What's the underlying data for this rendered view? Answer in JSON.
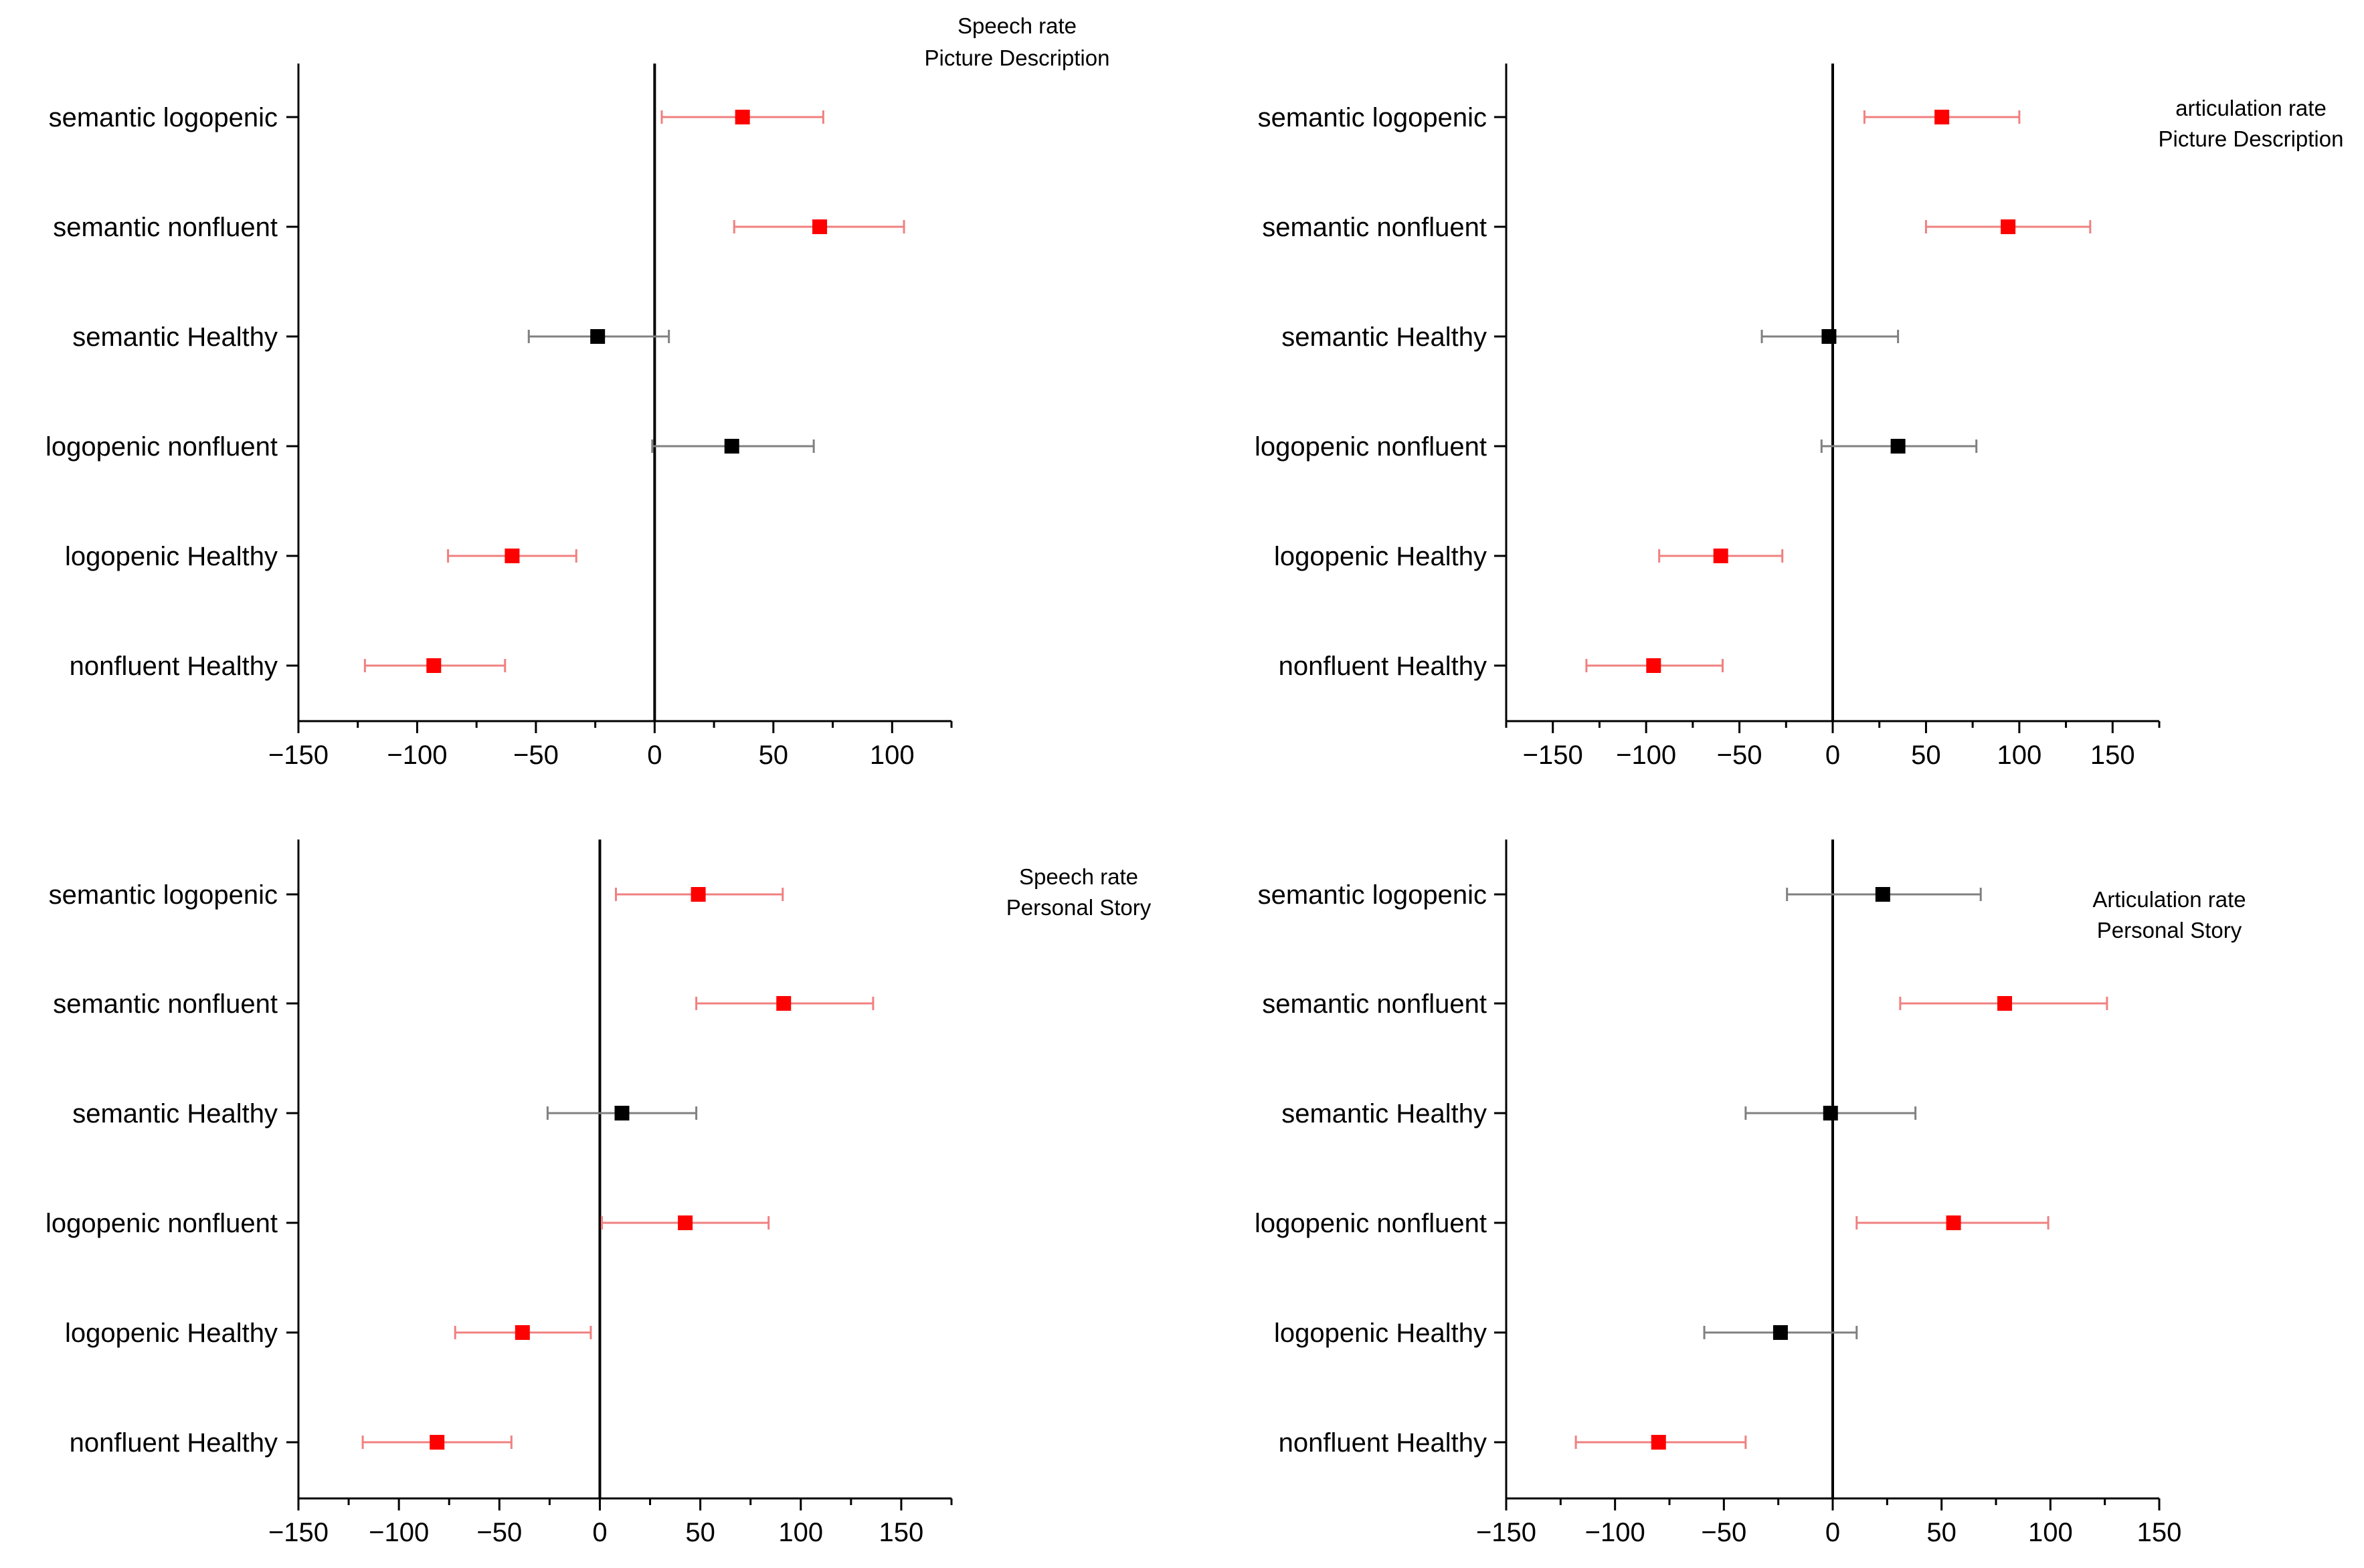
{
  "chart_data": [
    {
      "type": "scatter",
      "title_lines": [
        "Speech rate",
        "Picture Description"
      ],
      "title_anchor": "middle",
      "xlim": [
        -150,
        125
      ],
      "xticks": [
        -150,
        -100,
        -50,
        0,
        50,
        100
      ],
      "tick_labels": [
        "−150",
        "−100",
        "−50",
        "0",
        "50",
        "100"
      ],
      "categories": [
        "semantic  logopenic",
        "semantic  nonfluent",
        "semantic  Healthy",
        "logopenic  nonfluent",
        "logopenic  Healthy",
        "nonfluent  Healthy"
      ],
      "estimates": [
        37,
        69.5,
        -24,
        32.5,
        -60,
        -93
      ],
      "lower": [
        3,
        33.5,
        -53,
        -1,
        -87,
        -122
      ],
      "upper": [
        71,
        105,
        6,
        67,
        -33,
        -63
      ],
      "significant": [
        true,
        true,
        false,
        false,
        true,
        true
      ]
    },
    {
      "type": "scatter",
      "title_lines": [
        "articulation rate",
        "Picture Description"
      ],
      "title_anchor": "middle",
      "xlim": [
        -175,
        175
      ],
      "xticks": [
        -150,
        -100,
        -50,
        0,
        50,
        100,
        150
      ],
      "tick_labels": [
        "−150",
        "−100",
        "−50",
        "0",
        "50",
        "100",
        "150"
      ],
      "categories": [
        "semantic  logopenic",
        "semantic  nonfluent",
        "semantic  Healthy",
        "logopenic  nonfluent",
        "logopenic  Healthy",
        "nonfluent  Healthy"
      ],
      "estimates": [
        58.5,
        94,
        -2,
        35,
        -60,
        -96
      ],
      "lower": [
        17,
        50,
        -38,
        -6,
        -93,
        -132
      ],
      "upper": [
        100,
        138,
        35,
        77,
        -27,
        -59
      ],
      "significant": [
        true,
        true,
        false,
        false,
        true,
        true
      ]
    },
    {
      "type": "scatter",
      "title_lines": [
        "Speech rate",
        "Personal Story"
      ],
      "title_anchor": "middle",
      "xlim": [
        -150,
        175
      ],
      "xticks": [
        -150,
        -100,
        -50,
        0,
        50,
        100,
        150
      ],
      "tick_labels": [
        "−150",
        "−100",
        "−50",
        "0",
        "50",
        "100",
        "150"
      ],
      "categories": [
        "semantic  logopenic",
        "semantic  nonfluent",
        "semantic  Healthy",
        "logopenic  nonfluent",
        "logopenic  Healthy",
        "nonfluent  Healthy"
      ],
      "estimates": [
        49,
        91.5,
        11,
        42.5,
        -38.5,
        -81
      ],
      "lower": [
        8,
        48,
        -26,
        1,
        -72,
        -118
      ],
      "upper": [
        91,
        136,
        48,
        84,
        -4.5,
        -44
      ],
      "significant": [
        true,
        true,
        false,
        true,
        true,
        true
      ]
    },
    {
      "type": "scatter",
      "title_lines": [
        "Articulation rate",
        "Personal Story"
      ],
      "title_anchor": "middle",
      "xlim": [
        -150,
        150
      ],
      "xticks": [
        -150,
        -100,
        -50,
        0,
        50,
        100,
        150
      ],
      "tick_labels": [
        "−150",
        "−100",
        "−50",
        "0",
        "50",
        "100",
        "150"
      ],
      "categories": [
        "semantic  logopenic",
        "semantic  nonfluent",
        "semantic  Healthy",
        "logopenic  nonfluent",
        "logopenic  Healthy",
        "nonfluent  Healthy"
      ],
      "estimates": [
        23,
        79,
        -1,
        55.5,
        -24,
        -80
      ],
      "lower": [
        -21,
        31,
        -40,
        11,
        -59,
        -118
      ],
      "upper": [
        68,
        126,
        38,
        99,
        11,
        -40
      ],
      "significant": [
        false,
        true,
        false,
        true,
        false,
        true
      ]
    }
  ],
  "colors": {
    "significant_marker": "#ff0000",
    "significant_bar": "#f08080",
    "nonsignificant_marker": "#000000",
    "nonsignificant_bar": "#808080",
    "axis": "#000000"
  }
}
